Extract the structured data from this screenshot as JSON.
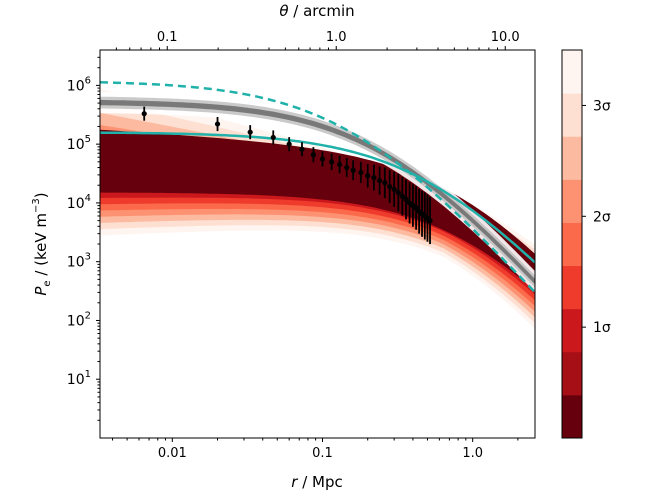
{
  "chart_data": {
    "type": "line",
    "xlabel_italic": "r",
    "xlabel_unit": " / Mpc",
    "top_xlabel_italic": "θ",
    "top_xlabel_unit": " / arcmin",
    "ylabel": "P",
    "ylabel_sub": "e",
    "ylabel_unit_pre": " / (keV m",
    "ylabel_sup": "−3",
    "ylabel_unit_post": ")",
    "x_scale": "log",
    "y_scale": "log",
    "xlim": [
      0.0033,
      2.6
    ],
    "ylim": [
      1.0,
      4000000
    ],
    "top_xlim": [
      0.04,
      15
    ],
    "x_ticks": [
      {
        "value": 0.01,
        "label": "0.01"
      },
      {
        "value": 0.1,
        "label": "0.1"
      },
      {
        "value": 1.0,
        "label": "1.0"
      }
    ],
    "top_ticks": [
      {
        "value": 0.1,
        "label": "0.1"
      },
      {
        "value": 1.0,
        "label": "1.0"
      },
      {
        "value": 10.0,
        "label": "10.0"
      }
    ],
    "y_ticks": [
      {
        "value": 10,
        "base": "10",
        "exp": "1"
      },
      {
        "value": 100,
        "base": "10",
        "exp": "2"
      },
      {
        "value": 1000,
        "base": "10",
        "exp": "3"
      },
      {
        "value": 10000,
        "base": "10",
        "exp": "4"
      },
      {
        "value": 100000,
        "base": "10",
        "exp": "5"
      },
      {
        "value": 1000000,
        "base": "10",
        "exp": "6"
      }
    ],
    "colorbar": {
      "colors": [
        "#67000d",
        "#a50f15",
        "#cb181d",
        "#ef3b2c",
        "#fb6a4a",
        "#fc9272",
        "#fcbba1",
        "#fee0d2",
        "#fff5f0"
      ],
      "ticks": [
        {
          "pos": 0.2857,
          "label": "1σ"
        },
        {
          "pos": 0.5714,
          "label": "2σ"
        },
        {
          "pos": 0.8571,
          "label": "3σ"
        }
      ]
    },
    "series": [
      {
        "name": "model-solid",
        "style": "solid",
        "color": "#20b2aa",
        "P0": 160000,
        "rs": 0.5,
        "beta": 2.8
      },
      {
        "name": "model-dashed",
        "style": "dashed",
        "color": "#20b2aa",
        "P0": 1200000,
        "rs": 0.15,
        "beta": 2.85
      },
      {
        "name": "grey-band",
        "style": "band",
        "color": "#707070",
        "P0": 530000,
        "rs": 0.25,
        "beta": 2.9
      },
      {
        "name": "red-band-median",
        "style": "band",
        "color": "#cb181d",
        "P0": 20000,
        "rs": 1.0,
        "beta": 3.0
      }
    ],
    "data_points": [
      {
        "x": 0.0065,
        "y": 330000,
        "err": 0.12
      },
      {
        "x": 0.02,
        "y": 220000,
        "err": 0.12
      },
      {
        "x": 0.033,
        "y": 160000,
        "err": 0.12
      },
      {
        "x": 0.047,
        "y": 130000,
        "err": 0.12
      },
      {
        "x": 0.06,
        "y": 100000,
        "err": 0.12
      },
      {
        "x": 0.073,
        "y": 82000,
        "err": 0.12
      },
      {
        "x": 0.087,
        "y": 66000,
        "err": 0.13
      },
      {
        "x": 0.1,
        "y": 56000,
        "err": 0.13
      },
      {
        "x": 0.115,
        "y": 50000,
        "err": 0.14
      },
      {
        "x": 0.13,
        "y": 45000,
        "err": 0.15
      },
      {
        "x": 0.145,
        "y": 40000,
        "err": 0.16
      },
      {
        "x": 0.16,
        "y": 36000,
        "err": 0.17
      },
      {
        "x": 0.18,
        "y": 33000,
        "err": 0.18
      },
      {
        "x": 0.2,
        "y": 29000,
        "err": 0.2
      },
      {
        "x": 0.22,
        "y": 27000,
        "err": 0.22
      },
      {
        "x": 0.24,
        "y": 24000,
        "err": 0.24
      },
      {
        "x": 0.26,
        "y": 22000,
        "err": 0.26
      },
      {
        "x": 0.28,
        "y": 19000,
        "err": 0.28
      },
      {
        "x": 0.3,
        "y": 17000,
        "err": 0.3
      },
      {
        "x": 0.32,
        "y": 15000,
        "err": 0.32
      },
      {
        "x": 0.34,
        "y": 13000,
        "err": 0.33
      },
      {
        "x": 0.36,
        "y": 11500,
        "err": 0.34
      },
      {
        "x": 0.38,
        "y": 10000,
        "err": 0.35
      },
      {
        "x": 0.4,
        "y": 9000,
        "err": 0.36
      },
      {
        "x": 0.42,
        "y": 8200,
        "err": 0.37
      },
      {
        "x": 0.44,
        "y": 7200,
        "err": 0.38
      },
      {
        "x": 0.46,
        "y": 6500,
        "err": 0.39
      },
      {
        "x": 0.48,
        "y": 6000,
        "err": 0.4
      },
      {
        "x": 0.5,
        "y": 5500,
        "err": 0.4
      },
      {
        "x": 0.52,
        "y": 5000,
        "err": 0.4
      }
    ]
  }
}
